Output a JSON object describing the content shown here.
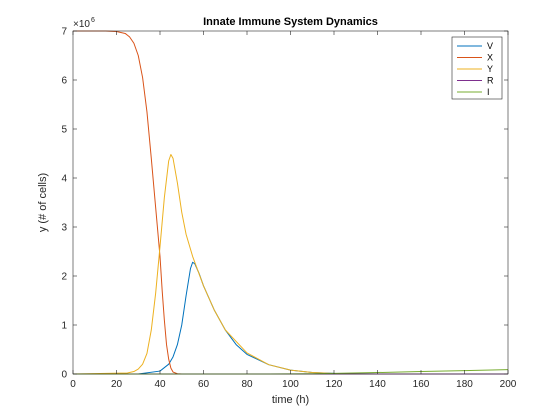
{
  "chart_data": {
    "type": "line",
    "title": "Innate Immune System Dynamics",
    "xlabel": "time (h)",
    "ylabel": "y (# of cells)",
    "xlim": [
      0,
      200
    ],
    "ylim": [
      0,
      7000000
    ],
    "y_exponent_label": "×10",
    "y_exponent_power": "6",
    "x_ticks": [
      0,
      20,
      40,
      60,
      80,
      100,
      120,
      140,
      160,
      180,
      200
    ],
    "x_tick_labels": [
      "0",
      "20",
      "40",
      "60",
      "80",
      "100",
      "120",
      "140",
      "160",
      "180",
      "200"
    ],
    "y_ticks": [
      0,
      1000000,
      2000000,
      3000000,
      4000000,
      5000000,
      6000000,
      7000000
    ],
    "y_tick_labels": [
      "0",
      "1",
      "2",
      "3",
      "4",
      "5",
      "6",
      "7"
    ],
    "grid": false,
    "legend_position": "top-right",
    "series": [
      {
        "name": "V",
        "color": "#0072BD",
        "x": [
          0,
          30,
          40,
          44,
          46,
          48,
          50,
          52,
          54,
          55,
          56,
          58,
          60,
          65,
          70,
          75,
          80,
          90,
          100,
          110,
          120,
          130,
          140
        ],
        "y": [
          0,
          0,
          60000,
          200000,
          350000,
          600000,
          1000000,
          1600000,
          2150000,
          2280000,
          2250000,
          2050000,
          1800000,
          1300000,
          900000,
          600000,
          400000,
          190000,
          80000,
          30000,
          12000,
          4000,
          0
        ]
      },
      {
        "name": "X",
        "color": "#D95319",
        "x": [
          0,
          15,
          20,
          24,
          26,
          28,
          30,
          32,
          34,
          36,
          38,
          40,
          41,
          42,
          43,
          44,
          45,
          46,
          48,
          50
        ],
        "y": [
          7000000,
          7000000,
          6990000,
          6950000,
          6880000,
          6750000,
          6500000,
          6050000,
          5350000,
          4400000,
          3400000,
          2400000,
          1700000,
          1100000,
          600000,
          300000,
          120000,
          40000,
          5000,
          0
        ]
      },
      {
        "name": "Y",
        "color": "#EDB120",
        "x": [
          0,
          25,
          28,
          30,
          32,
          34,
          36,
          38,
          40,
          42,
          44,
          45,
          46,
          48,
          50,
          52,
          55,
          60,
          65,
          70,
          80,
          90,
          100,
          110,
          120,
          130,
          140
        ],
        "y": [
          0,
          20000,
          50000,
          100000,
          200000,
          420000,
          900000,
          1650000,
          2600000,
          3600000,
          4350000,
          4480000,
          4400000,
          3900000,
          3300000,
          2850000,
          2400000,
          1800000,
          1300000,
          900000,
          430000,
          190000,
          80000,
          30000,
          10000,
          3000,
          0
        ]
      },
      {
        "name": "R",
        "color": "#7E2F8E",
        "x": [
          0,
          200
        ],
        "y": [
          0,
          0
        ]
      },
      {
        "name": "I",
        "color": "#77AC30",
        "x": [
          0,
          90,
          110,
          120,
          140,
          160,
          180,
          200
        ],
        "y": [
          0,
          0,
          5000,
          12000,
          30000,
          50000,
          70000,
          90000
        ]
      }
    ]
  }
}
